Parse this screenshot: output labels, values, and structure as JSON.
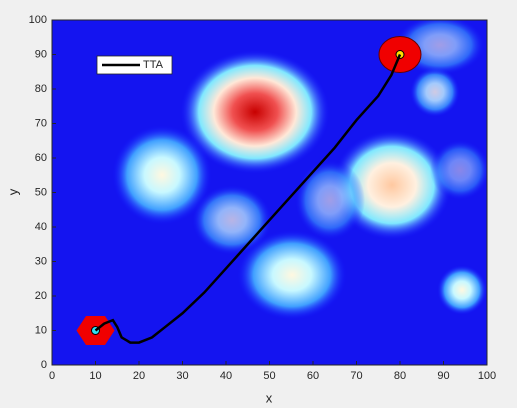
{
  "chart_data": {
    "type": "line",
    "xlabel": "x",
    "ylabel": "y",
    "xlim": [
      0,
      100
    ],
    "ylim": [
      0,
      100
    ],
    "xticks": [
      0,
      10,
      20,
      30,
      40,
      50,
      60,
      70,
      80,
      90,
      100
    ],
    "yticks": [
      0,
      10,
      20,
      30,
      40,
      50,
      60,
      70,
      80,
      90,
      100
    ],
    "series": [
      {
        "name": "TTA",
        "color": "#000000",
        "x": [
          10,
          12,
          14,
          15,
          16,
          18,
          20,
          23,
          26,
          30,
          35,
          40,
          45,
          50,
          55,
          60,
          65,
          70,
          75,
          78,
          80
        ],
        "values": [
          10,
          12,
          13,
          11,
          8,
          6.5,
          6.5,
          8,
          11,
          15,
          21,
          28,
          35,
          42,
          49,
          56,
          63,
          71,
          78,
          84,
          90
        ]
      }
    ],
    "endpoints": {
      "x": [
        10,
        80
      ],
      "y": [
        10,
        90
      ]
    },
    "legend": "upper-left"
  }
}
